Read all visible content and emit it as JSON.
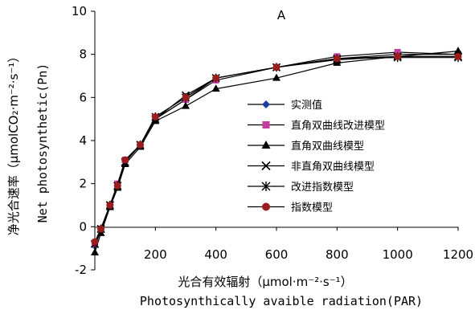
{
  "chart_data": {
    "type": "line",
    "panel_label": "A",
    "xlabel": "光合有效辐射（μmol·m⁻²·s⁻¹）",
    "xlabel_en": "Photosynthically avaible radiation(PAR)",
    "ylabel": "净光合速率（μmolCO₂·m⁻²·s⁻¹）",
    "ylabel_en": "Net photosynthetic(Pn)",
    "xlim": [
      0,
      1200
    ],
    "ylim": [
      -2,
      10
    ],
    "xticks": [
      200,
      400,
      600,
      800,
      1000,
      1200
    ],
    "yticks": [
      -2,
      0,
      2,
      4,
      6,
      8,
      10
    ],
    "grid": false,
    "legend_position": "center-right",
    "x": [
      0,
      20,
      50,
      75,
      100,
      150,
      200,
      300,
      400,
      600,
      800,
      1000,
      1200
    ],
    "series": [
      {
        "name": "实测值",
        "marker": "diamond",
        "color": "#1f3f9c",
        "values": [
          -0.9,
          -0.2,
          1.0,
          1.9,
          3.0,
          3.8,
          5.0,
          5.9,
          6.9,
          7.4,
          7.8,
          8.0,
          8.0
        ]
      },
      {
        "name": "直角双曲线改进模型",
        "marker": "square",
        "color": "#c43c9c",
        "values": [
          -0.8,
          -0.1,
          1.0,
          2.0,
          3.1,
          3.8,
          5.0,
          5.9,
          6.8,
          7.4,
          7.9,
          8.1,
          8.0
        ]
      },
      {
        "name": "直角双曲线模型",
        "marker": "triangle",
        "color": "#000000",
        "values": [
          -1.2,
          -0.3,
          0.9,
          1.8,
          2.9,
          3.7,
          4.9,
          5.6,
          6.4,
          6.9,
          7.6,
          7.9,
          8.15
        ]
      },
      {
        "name": "非直角双曲线模型",
        "marker": "x",
        "color": "#000000",
        "values": [
          -0.8,
          -0.1,
          1.0,
          1.9,
          3.0,
          3.8,
          5.0,
          6.1,
          6.9,
          7.4,
          7.75,
          7.9,
          7.9
        ]
      },
      {
        "name": "改进指数模型",
        "marker": "star",
        "color": "#000000",
        "values": [
          -0.8,
          -0.1,
          1.0,
          1.9,
          3.0,
          3.8,
          5.1,
          6.0,
          6.9,
          7.4,
          7.8,
          7.85,
          7.85
        ]
      },
      {
        "name": "指数模型",
        "marker": "circle",
        "color": "#9b1c1c",
        "values": [
          -0.7,
          -0.1,
          1.0,
          1.9,
          3.1,
          3.8,
          5.1,
          6.0,
          6.9,
          7.4,
          7.8,
          7.9,
          7.9
        ]
      }
    ]
  }
}
